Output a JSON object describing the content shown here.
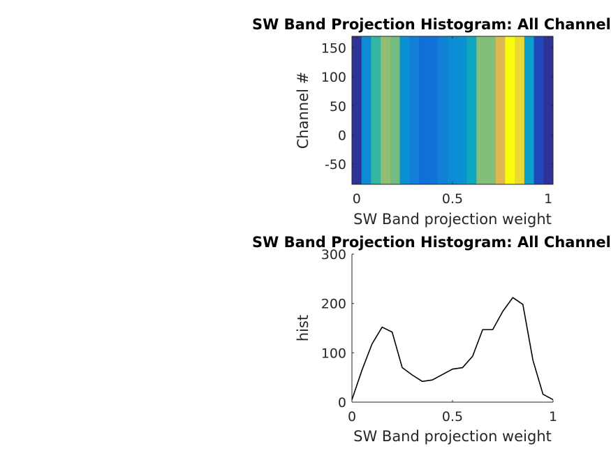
{
  "chart_data": [
    {
      "type": "heatmap",
      "title": "SW Band Projection Histogram: All Channels",
      "xlabel": "SW Band projection weight",
      "ylabel": "Channel #",
      "xlim": [
        -0.025,
        1.025
      ],
      "ylim": [
        -85,
        170
      ],
      "xticks": [
        0,
        0.5,
        1
      ],
      "xtick_labels": [
        "0",
        "0.5",
        "1"
      ],
      "yticks": [
        -50,
        0,
        50,
        100,
        150
      ],
      "ytick_labels": [
        "-50",
        "0",
        "50",
        "100",
        "150"
      ],
      "x": [
        0,
        0.05,
        0.1,
        0.15,
        0.2,
        0.25,
        0.3,
        0.35,
        0.4,
        0.45,
        0.5,
        0.55,
        0.6,
        0.65,
        0.7,
        0.75,
        0.8,
        0.85,
        0.9,
        0.95,
        1.0
      ],
      "values": [
        5,
        65,
        118,
        152,
        142,
        70,
        55,
        42,
        45,
        56,
        67,
        70,
        93,
        147,
        147,
        184,
        212,
        198,
        85,
        16,
        5
      ],
      "colormap": "parula",
      "clim": [
        0,
        212
      ],
      "grid": false
    },
    {
      "type": "line",
      "title": "SW Band Projection Histogram: All Channels",
      "xlabel": "SW Band projection weight",
      "ylabel": "hist",
      "xlim": [
        0,
        1
      ],
      "ylim": [
        0,
        300
      ],
      "xticks": [
        0,
        0.5,
        1
      ],
      "xtick_labels": [
        "0",
        "0.5",
        "1"
      ],
      "yticks": [
        0,
        100,
        200,
        300
      ],
      "ytick_labels": [
        "0",
        "100",
        "200",
        "300"
      ],
      "series": [
        {
          "x": [
            0,
            0.05,
            0.1,
            0.15,
            0.2,
            0.25,
            0.3,
            0.35,
            0.4,
            0.45,
            0.5,
            0.55,
            0.6,
            0.65,
            0.7,
            0.75,
            0.8,
            0.85,
            0.9,
            0.95,
            1.0
          ],
          "values": [
            5,
            65,
            118,
            152,
            142,
            70,
            55,
            42,
            45,
            56,
            67,
            70,
            93,
            147,
            147,
            184,
            212,
            198,
            85,
            16,
            5
          ],
          "color": "#000000"
        }
      ],
      "grid": false
    }
  ]
}
